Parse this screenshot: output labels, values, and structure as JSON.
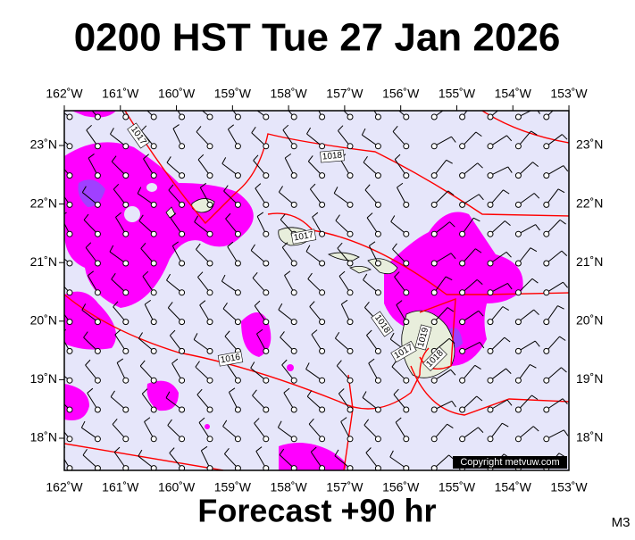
{
  "title": "0200 HST Tue 27 Jan 2026",
  "footer": "Forecast +90 hr",
  "code": "M3",
  "copyright": "Copyright metvuw.com",
  "map": {
    "lon_labels": [
      "162˚W",
      "161˚W",
      "160˚W",
      "159˚W",
      "158˚W",
      "157˚W",
      "156˚W",
      "155˚W",
      "154˚W",
      "153˚W"
    ],
    "lat_labels": [
      "23˚N",
      "22˚N",
      "21˚N",
      "20˚N",
      "19˚N",
      "18˚N"
    ],
    "isobar_labels": [
      "1017",
      "1018",
      "1017",
      "1016",
      "1018",
      "1019",
      "1017",
      "1018"
    ]
  }
}
